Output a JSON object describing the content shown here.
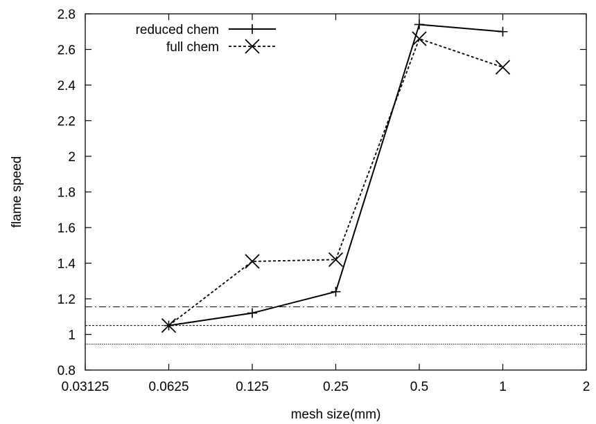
{
  "chart_data": {
    "type": "line",
    "title": "",
    "xlabel": "mesh size(mm)",
    "ylabel": "flame speed",
    "x_scale": "log2",
    "xlim": [
      0.03125,
      2
    ],
    "ylim": [
      0.8,
      2.8
    ],
    "x_ticks": [
      {
        "value": 0.03125,
        "label": "0.03125"
      },
      {
        "value": 0.0625,
        "label": "0.0625"
      },
      {
        "value": 0.125,
        "label": "0.125"
      },
      {
        "value": 0.25,
        "label": "0.25"
      },
      {
        "value": 0.5,
        "label": "0.5"
      },
      {
        "value": 1,
        "label": "1"
      },
      {
        "value": 2,
        "label": "2"
      }
    ],
    "y_ticks": [
      {
        "value": 0.8,
        "label": "0.8"
      },
      {
        "value": 1.0,
        "label": "1"
      },
      {
        "value": 1.2,
        "label": "1.2"
      },
      {
        "value": 1.4,
        "label": "1.4"
      },
      {
        "value": 1.6,
        "label": "1.6"
      },
      {
        "value": 1.8,
        "label": "1.8"
      },
      {
        "value": 2.0,
        "label": "2"
      },
      {
        "value": 2.2,
        "label": "2.2"
      },
      {
        "value": 2.4,
        "label": "2.4"
      },
      {
        "value": 2.6,
        "label": "2.6"
      },
      {
        "value": 2.8,
        "label": "2.8"
      }
    ],
    "grid": false,
    "legend_position": "top-left",
    "series": [
      {
        "name": "reduced chem",
        "line_style": "solid",
        "marker": "plus",
        "color": "#000000",
        "x": [
          0.0625,
          0.125,
          0.25,
          0.5,
          1
        ],
        "y": [
          1.05,
          1.12,
          1.24,
          2.74,
          2.7
        ]
      },
      {
        "name": "full chem",
        "line_style": "dashed",
        "marker": "cross",
        "color": "#000000",
        "x": [
          0.0625,
          0.125,
          0.25,
          0.5,
          1
        ],
        "y": [
          1.05,
          1.41,
          1.42,
          2.66,
          2.5
        ]
      }
    ],
    "reference_lines": [
      {
        "y": 1.155,
        "style": "dash-dot",
        "color": "#000000"
      },
      {
        "y": 1.05,
        "style": "dotted",
        "color": "#000000"
      },
      {
        "y": 0.945,
        "style": "dotted-fine",
        "color": "#000000"
      }
    ]
  }
}
